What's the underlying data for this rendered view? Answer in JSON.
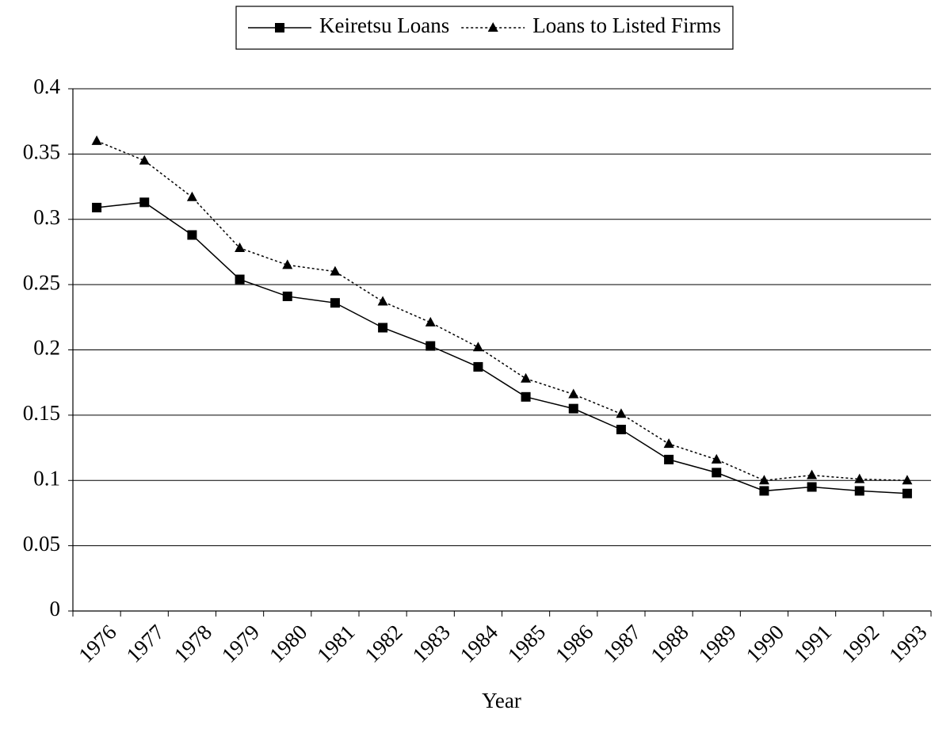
{
  "chart_data": {
    "type": "line",
    "x_label": "Year",
    "categories": [
      "1976",
      "1977",
      "1978",
      "1979",
      "1980",
      "1981",
      "1982",
      "1983",
      "1984",
      "1985",
      "1986",
      "1987",
      "1988",
      "1989",
      "1990",
      "1991",
      "1992",
      "1993"
    ],
    "series": [
      {
        "name": "Keiretsu Loans",
        "color": "#000000",
        "marker": "square",
        "dashed": false,
        "values": [
          0.309,
          0.313,
          0.288,
          0.254,
          0.241,
          0.236,
          0.217,
          0.203,
          0.187,
          0.164,
          0.155,
          0.139,
          0.116,
          0.106,
          0.092,
          0.095,
          0.092,
          0.09
        ]
      },
      {
        "name": "Loans to Listed Firms",
        "color": "#000000",
        "marker": "triangle",
        "dashed": true,
        "values": [
          0.36,
          0.345,
          0.317,
          0.278,
          0.265,
          0.26,
          0.237,
          0.221,
          0.202,
          0.178,
          0.166,
          0.151,
          0.128,
          0.116,
          0.1,
          0.104,
          0.101,
          0.1
        ]
      }
    ],
    "ylim": [
      0,
      0.4
    ],
    "yticks": [
      0,
      0.05,
      0.1,
      0.15,
      0.2,
      0.25,
      0.3,
      0.35,
      0.4
    ],
    "grid": true,
    "legend": "top"
  }
}
